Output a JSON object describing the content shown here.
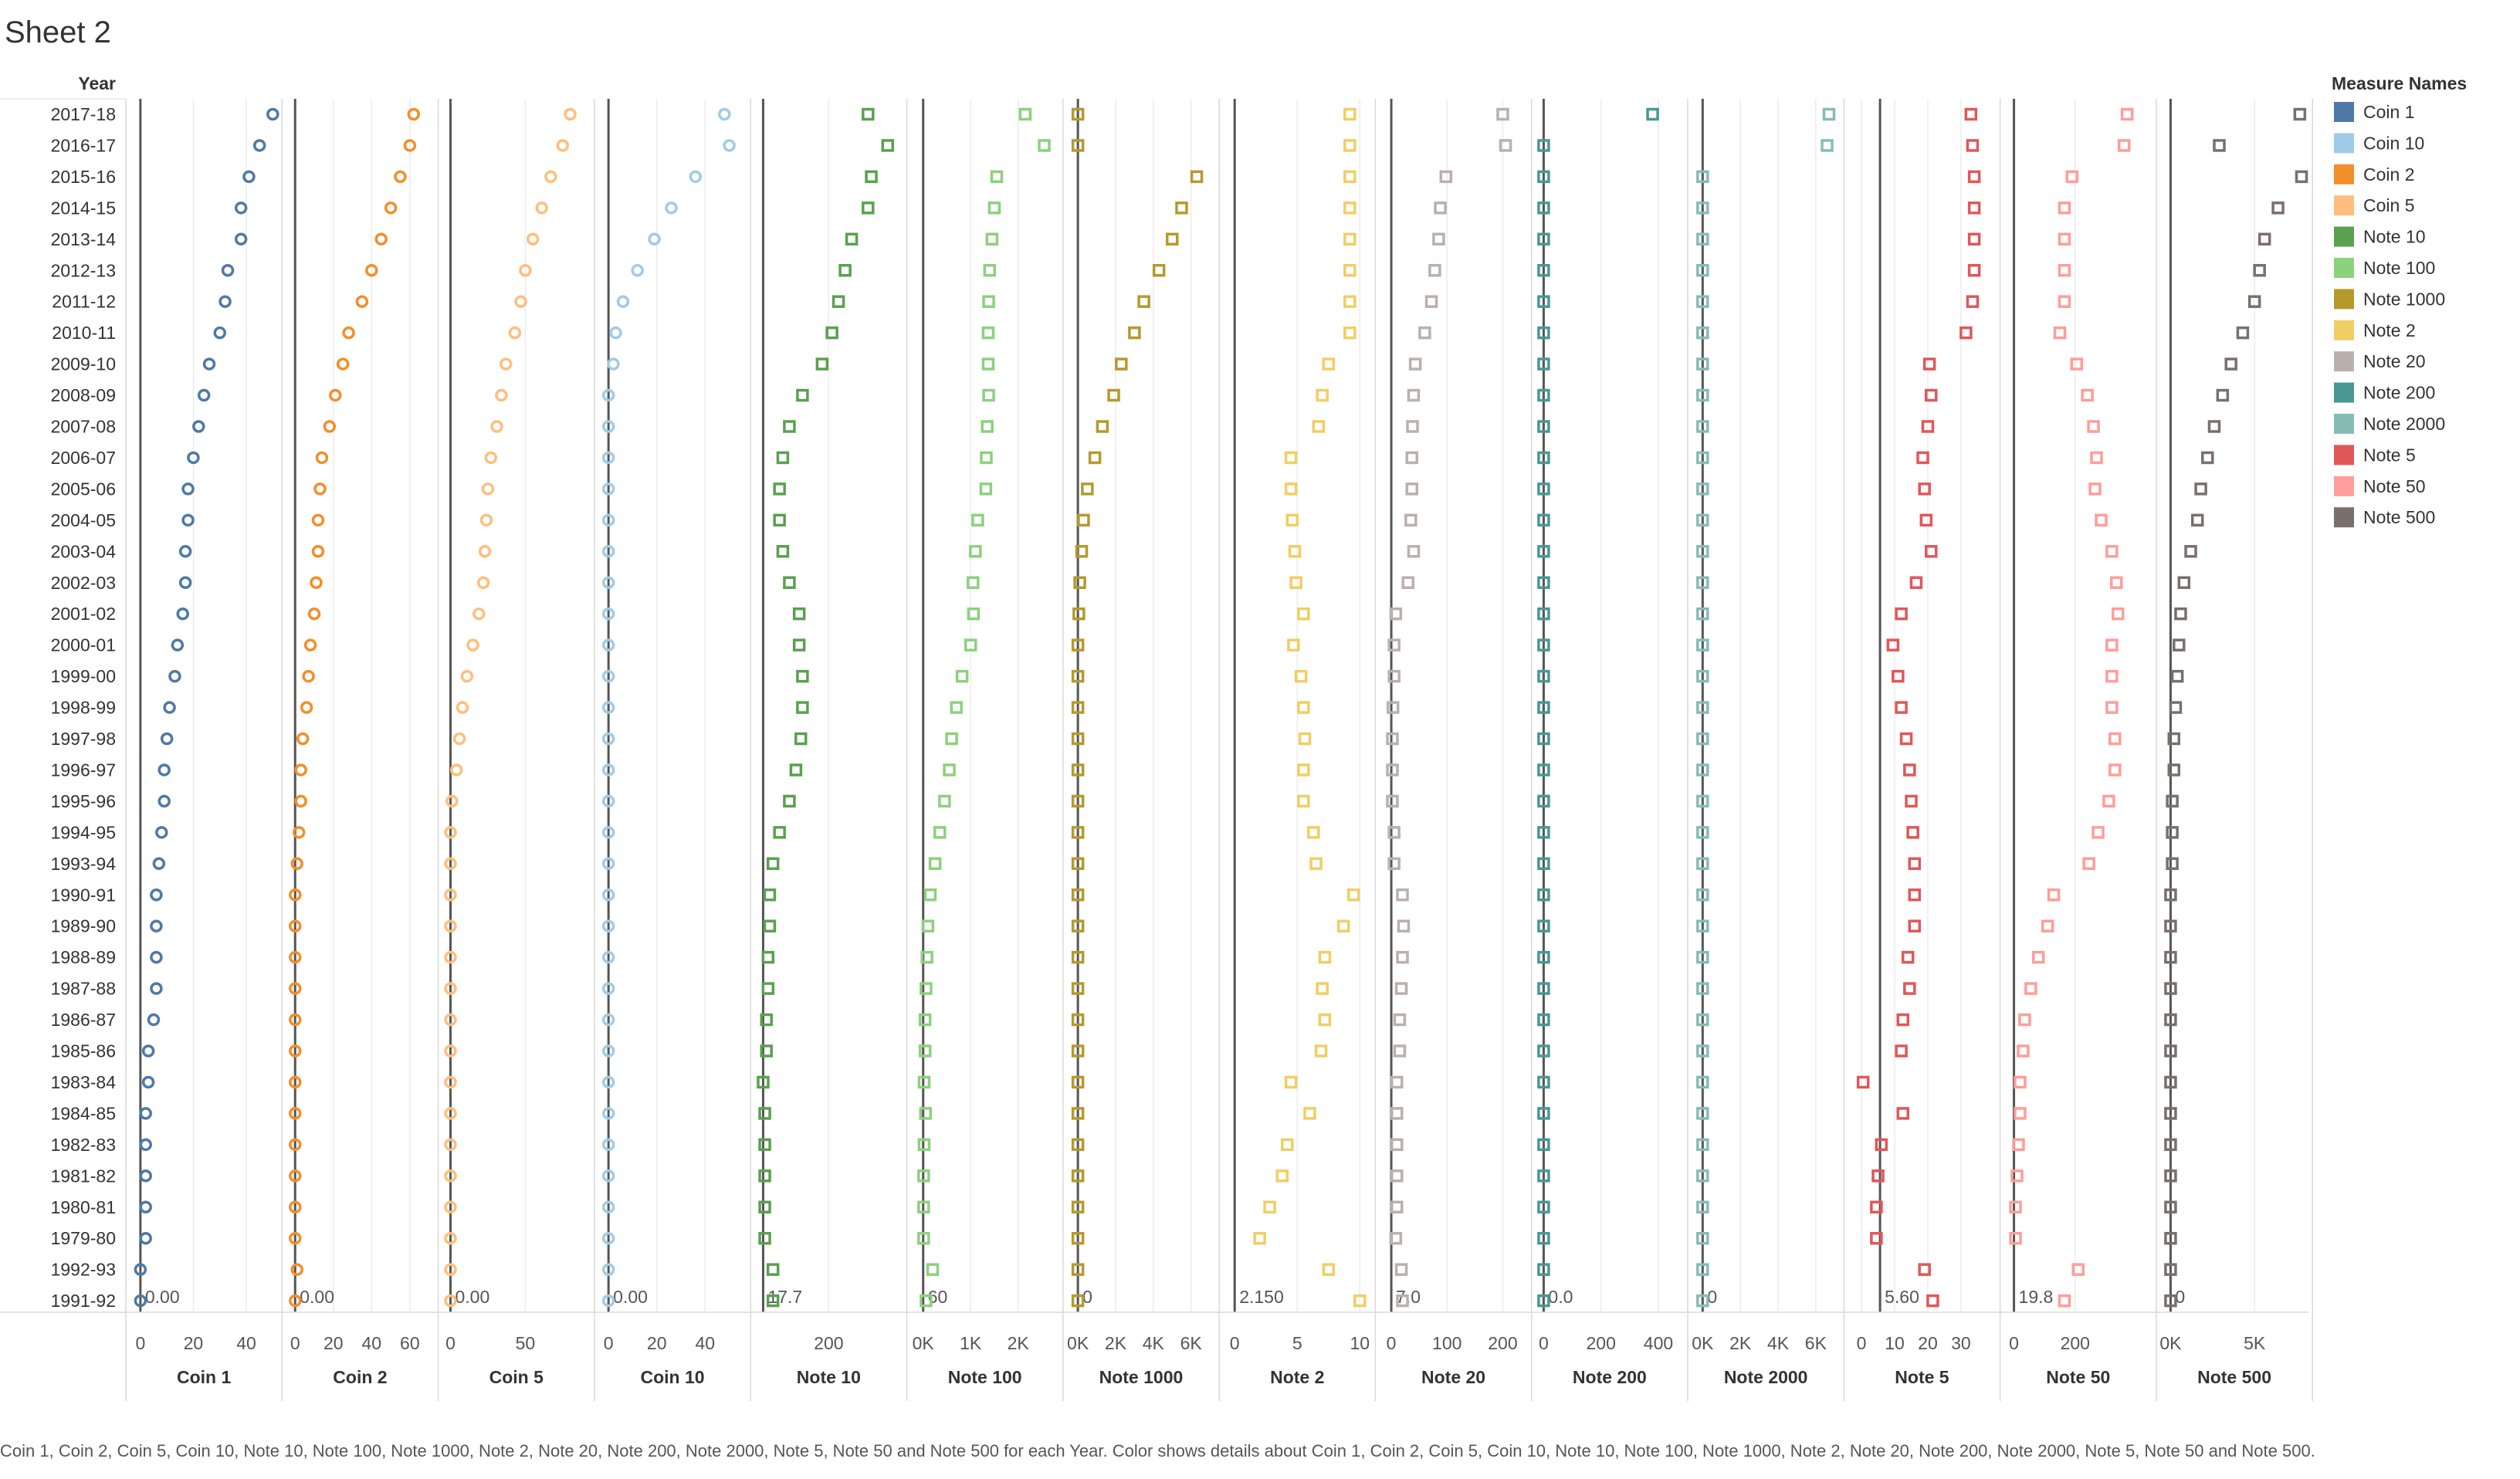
{
  "sheet_title": "Sheet 2",
  "row_header": "Year",
  "legend_title": "Measure Names",
  "caption": "Coin 1, Coin 2, Coin 5, Coin 10, Note 10, Note 100, Note 1000, Note 2, Note 20, Note 200, Note 2000, Note 5, Note 50 and Note 500 for each Year.  Color shows details about Coin 1, Coin 2, Coin 5, Coin 10, Note 10, Note 100, Note 1000, Note 2, Note 20, Note 200, Note 2000, Note 5, Note 50 and Note 500.",
  "chart_data": {
    "type": "scatter",
    "years": [
      "2017-18",
      "2016-17",
      "2015-16",
      "2014-15",
      "2013-14",
      "2012-13",
      "2011-12",
      "2010-11",
      "2009-10",
      "2008-09",
      "2007-08",
      "2006-07",
      "2005-06",
      "2004-05",
      "2003-04",
      "2002-03",
      "2001-02",
      "2000-01",
      "1999-00",
      "1998-99",
      "1997-98",
      "1996-97",
      "1995-96",
      "1994-95",
      "1993-94",
      "1990-91",
      "1989-90",
      "1988-89",
      "1987-88",
      "1986-87",
      "1985-86",
      "1983-84",
      "1984-85",
      "1982-83",
      "1981-82",
      "1980-81",
      "1979-80",
      "1992-93",
      "1991-92"
    ],
    "series": [
      {
        "name": "Coin 1",
        "color": "#4e79a7",
        "marker": "circle",
        "ticks": [
          {
            "label": "0",
            "v": 0
          },
          {
            "label": "20",
            "v": 20
          },
          {
            "label": "40",
            "v": 40
          }
        ],
        "domain": [
          -2,
          50
        ],
        "reference": {
          "value": 0,
          "label": "0.00"
        },
        "values": [
          50,
          45,
          41,
          38,
          38,
          33,
          32,
          30,
          26,
          24,
          22,
          20,
          18,
          18,
          17,
          17,
          16,
          14,
          13,
          11,
          10,
          9,
          9,
          8,
          7,
          6,
          6,
          6,
          6,
          5,
          3,
          3,
          2,
          2,
          2,
          2,
          2,
          0,
          0
        ]
      },
      {
        "name": "Coin 2",
        "color": "#f28e2b",
        "marker": "circle",
        "ticks": [
          {
            "label": "0",
            "v": 0
          },
          {
            "label": "20",
            "v": 20
          },
          {
            "label": "40",
            "v": 40
          },
          {
            "label": "60",
            "v": 60
          }
        ],
        "domain": [
          -2,
          70
        ],
        "reference": {
          "value": 0,
          "label": "0.00"
        },
        "values": [
          62,
          60,
          55,
          50,
          45,
          40,
          35,
          28,
          25,
          21,
          18,
          14,
          13,
          12,
          12,
          11,
          10,
          8,
          7,
          6,
          4,
          3,
          3,
          2,
          1,
          0,
          0,
          0,
          0,
          0,
          0,
          0,
          0,
          0,
          0,
          0,
          0,
          1,
          0
        ]
      },
      {
        "name": "Coin 5",
        "color": "#ffbe7d",
        "marker": "circle",
        "ticks": [
          {
            "label": "0",
            "v": 0
          },
          {
            "label": "50",
            "v": 50
          }
        ],
        "domain": [
          -2,
          90
        ],
        "reference": {
          "value": 0,
          "label": "0.00"
        },
        "values": [
          80,
          75,
          67,
          61,
          55,
          50,
          47,
          43,
          37,
          34,
          31,
          27,
          25,
          24,
          23,
          22,
          19,
          15,
          11,
          8,
          6,
          4,
          1,
          0,
          0,
          0,
          0,
          0,
          0,
          0,
          0,
          0,
          0,
          0,
          0,
          0,
          0,
          0,
          0
        ]
      },
      {
        "name": "Coin 10",
        "color": "#a0cbe8",
        "marker": "circle",
        "ticks": [
          {
            "label": "0",
            "v": 0
          },
          {
            "label": "20",
            "v": 20
          },
          {
            "label": "40",
            "v": 40
          }
        ],
        "domain": [
          -2,
          55
        ],
        "reference": {
          "value": 0,
          "label": "0.00"
        },
        "values": [
          48,
          50,
          36,
          26,
          19,
          12,
          6,
          3,
          2,
          0,
          0,
          0,
          0,
          0,
          0,
          0,
          0,
          0,
          0,
          0,
          0,
          0,
          0,
          0,
          0,
          0,
          0,
          0,
          0,
          0,
          0,
          0,
          0,
          0,
          0,
          0,
          0,
          0,
          0
        ]
      },
      {
        "name": "Note 10",
        "color": "#59a14f",
        "marker": "square",
        "ticks": [
          {
            "label": "200",
            "v": 200
          }
        ],
        "domain": [
          -10,
          410
        ],
        "reference": {
          "value": 0,
          "label": "17.7"
        },
        "values": [
          320,
          380,
          330,
          320,
          270,
          250,
          230,
          210,
          180,
          120,
          80,
          60,
          50,
          50,
          60,
          80,
          110,
          110,
          120,
          120,
          115,
          100,
          80,
          50,
          30,
          20,
          20,
          15,
          15,
          10,
          10,
          0,
          5,
          5,
          5,
          5,
          5,
          30,
          30
        ]
      },
      {
        "name": "Note 100",
        "color": "#8cd17d",
        "marker": "square",
        "ticks": [
          {
            "label": "0K",
            "v": 0
          },
          {
            "label": "1K",
            "v": 1000
          },
          {
            "label": "2K",
            "v": 2000
          }
        ],
        "domain": [
          -150,
          2750
        ],
        "reference": {
          "value": 0,
          "label": "60"
        },
        "values": [
          2150,
          2550,
          1550,
          1500,
          1450,
          1400,
          1380,
          1370,
          1370,
          1380,
          1350,
          1330,
          1320,
          1150,
          1100,
          1050,
          1060,
          1000,
          820,
          700,
          600,
          550,
          450,
          350,
          250,
          150,
          100,
          80,
          60,
          40,
          40,
          20,
          50,
          20,
          10,
          10,
          10,
          200,
          60
        ]
      },
      {
        "name": "Note 1000",
        "color": "#b6992d",
        "marker": "square",
        "ticks": [
          {
            "label": "0K",
            "v": 0
          },
          {
            "label": "2K",
            "v": 2000
          },
          {
            "label": "4K",
            "v": 4000
          },
          {
            "label": "6K",
            "v": 6000
          }
        ],
        "domain": [
          -300,
          7000
        ],
        "reference": {
          "value": 0,
          "label": "0"
        },
        "values": [
          0,
          0,
          6300,
          5500,
          5000,
          4300,
          3500,
          3000,
          2300,
          1900,
          1300,
          900,
          500,
          300,
          200,
          100,
          50,
          0,
          0,
          0,
          0,
          0,
          0,
          0,
          0,
          0,
          0,
          0,
          0,
          0,
          0,
          0,
          0,
          0,
          0,
          0,
          0,
          0,
          0
        ]
      },
      {
        "name": "Note 2",
        "color": "#f1ce63",
        "marker": "square",
        "ticks": [
          {
            "label": "0",
            "v": 0
          },
          {
            "label": "5",
            "v": 5
          },
          {
            "label": "10",
            "v": 10
          }
        ],
        "domain": [
          -0.5,
          10.5
        ],
        "reference": {
          "value": 0,
          "label": "2.150"
        },
        "values": [
          9.2,
          9.2,
          9.2,
          9.2,
          9.2,
          9.2,
          9.2,
          9.2,
          7.5,
          7.0,
          6.7,
          4.5,
          4.5,
          4.6,
          4.8,
          4.9,
          5.5,
          4.7,
          5.3,
          5.5,
          5.6,
          5.5,
          5.5,
          6.3,
          6.5,
          9.5,
          8.7,
          7.2,
          7.0,
          7.2,
          6.9,
          4.5,
          6.0,
          4.2,
          3.8,
          2.8,
          2.0,
          7.5,
          10.0
        ]
      },
      {
        "name": "Note 20",
        "color": "#bab0ac",
        "marker": "square",
        "ticks": [
          {
            "label": "0",
            "v": 0
          },
          {
            "label": "100",
            "v": 100
          },
          {
            "label": "200",
            "v": 200
          }
        ],
        "domain": [
          -12,
          235
        ],
        "reference": {
          "value": 0,
          "label": "7.0"
        },
        "values": [
          200,
          205,
          98,
          88,
          85,
          78,
          72,
          60,
          43,
          40,
          38,
          37,
          37,
          35,
          40,
          30,
          8,
          5,
          5,
          3,
          2,
          2,
          2,
          5,
          5,
          20,
          22,
          20,
          18,
          15,
          15,
          10,
          10,
          10,
          10,
          10,
          8,
          18,
          20
        ]
      },
      {
        "name": "Note 200",
        "color": "#499894",
        "marker": "square",
        "ticks": [
          {
            "label": "0",
            "v": 0
          },
          {
            "label": "200",
            "v": 200
          },
          {
            "label": "400",
            "v": 400
          }
        ],
        "domain": [
          -10,
          470
        ],
        "reference": {
          "value": 0,
          "label": "0.0"
        },
        "values": [
          380,
          0,
          0,
          0,
          0,
          0,
          0,
          0,
          0,
          0,
          0,
          0,
          0,
          0,
          0,
          0,
          0,
          0,
          0,
          0,
          0,
          0,
          0,
          0,
          0,
          0,
          0,
          0,
          0,
          0,
          0,
          0,
          0,
          0,
          0,
          0,
          0,
          0,
          0
        ]
      },
      {
        "name": "Note 2000",
        "color": "#86bcb6",
        "marker": "square",
        "ticks": [
          {
            "label": "0K",
            "v": 0
          },
          {
            "label": "2K",
            "v": 2000
          },
          {
            "label": "4K",
            "v": 4000
          },
          {
            "label": "6K",
            "v": 6000
          }
        ],
        "domain": [
          -300,
          7000
        ],
        "reference": {
          "value": 0,
          "label": "0"
        },
        "values": [
          6700,
          6600,
          0,
          0,
          0,
          0,
          0,
          0,
          0,
          0,
          0,
          0,
          0,
          0,
          0,
          0,
          0,
          0,
          0,
          0,
          0,
          0,
          0,
          0,
          0,
          0,
          0,
          0,
          0,
          0,
          0,
          0,
          0,
          0,
          0,
          0,
          0,
          0,
          0
        ]
      },
      {
        "name": "Note 5",
        "color": "#e15759",
        "marker": "square",
        "ticks": [
          {
            "label": "0",
            "v": 0
          },
          {
            "label": "10",
            "v": 10
          },
          {
            "label": "20",
            "v": 20
          },
          {
            "label": "30",
            "v": 30
          }
        ],
        "domain": [
          -2.5,
          39
        ],
        "reference": {
          "value": 5.6,
          "label": "5.60"
        },
        "values": [
          33,
          33.5,
          34,
          34,
          34,
          34,
          33.5,
          31.5,
          20.5,
          21,
          20,
          18.5,
          19,
          19.5,
          21,
          16.5,
          12,
          9.5,
          11,
          12,
          13.5,
          14.5,
          15,
          15.5,
          16,
          16,
          16,
          14,
          14.5,
          12.5,
          12,
          0.5,
          12.5,
          6,
          5,
          4.5,
          4.5,
          19,
          21.5
        ]
      },
      {
        "name": "Note 50",
        "color": "#ff9d9a",
        "marker": "square",
        "ticks": [
          {
            "label": "0",
            "v": 0
          },
          {
            "label": "200",
            "v": 200
          }
        ],
        "domain": [
          -15,
          435
        ],
        "reference": {
          "value": 0,
          "label": "19.8"
        },
        "values": [
          370,
          360,
          190,
          165,
          165,
          165,
          165,
          150,
          205,
          240,
          260,
          270,
          265,
          285,
          320,
          335,
          340,
          320,
          320,
          320,
          330,
          330,
          310,
          275,
          245,
          130,
          110,
          80,
          55,
          35,
          30,
          20,
          20,
          15,
          10,
          5,
          5,
          210,
          165
        ]
      },
      {
        "name": "Note 500",
        "color": "#79706e",
        "marker": "square",
        "ticks": [
          {
            "label": "0K",
            "v": 0
          },
          {
            "label": "5K",
            "v": 5000
          }
        ],
        "domain": [
          -300,
          7900
        ],
        "reference": {
          "value": 0,
          "label": "0"
        },
        "values": [
          7700,
          2900,
          7800,
          6400,
          5600,
          5300,
          5000,
          4300,
          3600,
          3100,
          2600,
          2200,
          1800,
          1600,
          1200,
          800,
          600,
          500,
          400,
          300,
          200,
          200,
          100,
          100,
          100,
          0,
          0,
          0,
          0,
          0,
          0,
          0,
          0,
          0,
          0,
          0,
          0,
          0,
          0
        ]
      }
    ]
  }
}
